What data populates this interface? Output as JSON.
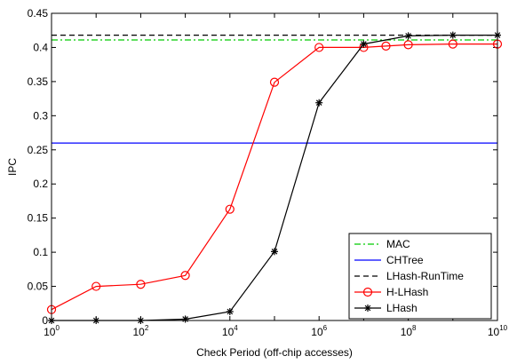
{
  "chart_data": {
    "type": "line",
    "x_scale": "log",
    "xlabel": "Check Period (off-chip accesses)",
    "ylabel": "IPC",
    "xlim": [
      1,
      10000000000
    ],
    "ylim": [
      0,
      0.45
    ],
    "x_ticks": [
      {
        "base": "10",
        "exp": "0",
        "value": 1
      },
      {
        "base": "10",
        "exp": "2",
        "value": 100
      },
      {
        "base": "10",
        "exp": "4",
        "value": 10000
      },
      {
        "base": "10",
        "exp": "6",
        "value": 1000000
      },
      {
        "base": "10",
        "exp": "8",
        "value": 100000000
      },
      {
        "base": "10",
        "exp": "10",
        "value": 10000000000
      }
    ],
    "y_ticks": [
      "0",
      "0.05",
      "0.1",
      "0.15",
      "0.2",
      "0.25",
      "0.3",
      "0.35",
      "0.4",
      "0.45"
    ],
    "grid": false,
    "legend_position": "bottom-right",
    "series": [
      {
        "name": "MAC",
        "color": "#00cc00",
        "line_style": "dash-dot",
        "marker": "none",
        "x": [
          1,
          10000000000
        ],
        "y": [
          0.411,
          0.411
        ]
      },
      {
        "name": "CHTree",
        "color": "#0000ff",
        "line_style": "solid",
        "marker": "none",
        "x": [
          1,
          10000000000
        ],
        "y": [
          0.26,
          0.26
        ]
      },
      {
        "name": "LHash-RunTime",
        "color": "#000000",
        "line_style": "dashed",
        "marker": "none",
        "x": [
          1,
          10000000000
        ],
        "y": [
          0.418,
          0.418
        ]
      },
      {
        "name": "H-LHash",
        "color": "#ff0000",
        "line_style": "solid",
        "marker": "circle",
        "x": [
          1,
          10,
          100,
          1000,
          10000,
          100000,
          1000000,
          10000000,
          31622777,
          100000000,
          1000000000,
          10000000000
        ],
        "y": [
          0.016,
          0.05,
          0.053,
          0.066,
          0.163,
          0.349,
          0.4,
          0.4,
          0.402,
          0.404,
          0.405,
          0.405
        ]
      },
      {
        "name": "LHash",
        "color": "#000000",
        "line_style": "solid",
        "marker": "star",
        "x": [
          1,
          10,
          100,
          1000,
          10000,
          100000,
          1000000,
          10000000,
          100000000,
          1000000000,
          10000000000
        ],
        "y": [
          0.0,
          0.0,
          0.0,
          0.002,
          0.013,
          0.101,
          0.319,
          0.405,
          0.417,
          0.418,
          0.418
        ]
      }
    ]
  }
}
